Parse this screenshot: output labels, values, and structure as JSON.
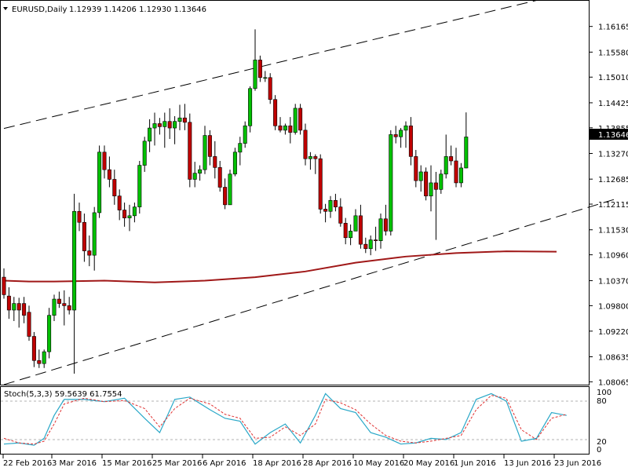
{
  "header": {
    "symbol": "EURUSD,Daily",
    "ohlc": "1.12939 1.14206 1.12930 1.13646"
  },
  "indicator": {
    "title": "Stoch(5,3,3) 59.5639 61.7554",
    "levels": [
      "100",
      "80",
      "20",
      "0"
    ]
  },
  "current_price": "1.13646",
  "colors": {
    "background": "#ffffff",
    "bull": "#00c000",
    "bear": "#c00000",
    "wick": "#000000",
    "ma": "#a01818",
    "stoch_main": "#2aa8c8",
    "stoch_signal": "#e03030",
    "channel": "#000000"
  },
  "chart_data": {
    "type": "candlestick",
    "title": "EURUSD,Daily",
    "y_ticks": [
      "1.16165",
      "1.15580",
      "1.15010",
      "1.14425",
      "1.13855",
      "1.13270",
      "1.12685",
      "1.12115",
      "1.11530",
      "1.10960",
      "1.10370",
      "1.09800",
      "1.09220",
      "1.08635",
      "1.08065"
    ],
    "ylim": [
      1.08,
      1.1675
    ],
    "x_ticks": [
      "22 Feb 2016",
      "3 Mar 2016",
      "15 Mar 2016",
      "25 Mar 2016",
      "6 Apr 2016",
      "18 Apr 2016",
      "28 Apr 2016",
      "10 May 2016",
      "20 May 2016",
      "1 Jun 2016",
      "13 Jun 2016",
      "23 Jun 2016"
    ],
    "ohlc": [
      [
        1.1045,
        1.1065,
        1.0996,
        1.1005
      ],
      [
        1.1002,
        1.1022,
        1.095,
        1.097
      ],
      [
        1.097,
        1.1,
        1.0945,
        1.0985
      ],
      [
        1.0985,
        1.0998,
        1.093,
        1.097
      ],
      [
        1.0985,
        1.1,
        1.094,
        1.0958
      ],
      [
        1.0965,
        1.098,
        1.09,
        1.091
      ],
      [
        1.091,
        1.092,
        1.084,
        1.0855
      ],
      [
        1.0855,
        1.088,
        1.0838,
        1.0848
      ],
      [
        1.0848,
        1.088,
        1.0838,
        1.0875
      ],
      [
        1.0875,
        1.0975,
        1.086,
        1.0958
      ],
      [
        1.0958,
        1.1005,
        1.0945,
        1.0995
      ],
      [
        1.0995,
        1.1012,
        1.0975,
        1.0985
      ],
      [
        1.0985,
        1.1015,
        1.0935,
        1.098
      ],
      [
        1.098,
        1.1,
        1.096,
        1.097
      ],
      [
        1.097,
        1.1235,
        1.0825,
        1.1195
      ],
      [
        1.1195,
        1.1215,
        1.115,
        1.117
      ],
      [
        1.117,
        1.119,
        1.108,
        1.1105
      ],
      [
        1.1105,
        1.114,
        1.107,
        1.1095
      ],
      [
        1.1095,
        1.1205,
        1.106,
        1.1192
      ],
      [
        1.1192,
        1.1345,
        1.118,
        1.133
      ],
      [
        1.133,
        1.1345,
        1.127,
        1.129
      ],
      [
        1.129,
        1.132,
        1.125,
        1.1268
      ],
      [
        1.1268,
        1.129,
        1.121,
        1.123
      ],
      [
        1.123,
        1.1245,
        1.1175,
        1.1198
      ],
      [
        1.1198,
        1.1215,
        1.116,
        1.118
      ],
      [
        1.118,
        1.121,
        1.115,
        1.1185
      ],
      [
        1.1185,
        1.1215,
        1.117,
        1.1205
      ],
      [
        1.1205,
        1.131,
        1.119,
        1.13
      ],
      [
        1.13,
        1.1365,
        1.1285,
        1.1355
      ],
      [
        1.1355,
        1.1405,
        1.133,
        1.1385
      ],
      [
        1.1385,
        1.142,
        1.1345,
        1.1395
      ],
      [
        1.1395,
        1.1408,
        1.137,
        1.1388
      ],
      [
        1.1388,
        1.142,
        1.134,
        1.14
      ],
      [
        1.14,
        1.143,
        1.136,
        1.1385
      ],
      [
        1.1385,
        1.1412,
        1.1348,
        1.14
      ],
      [
        1.14,
        1.1438,
        1.138,
        1.1408
      ],
      [
        1.1408,
        1.144,
        1.138,
        1.1398
      ],
      [
        1.1398,
        1.1418,
        1.125,
        1.1268
      ],
      [
        1.1268,
        1.1308,
        1.125,
        1.1282
      ],
      [
        1.1282,
        1.13,
        1.1265,
        1.129
      ],
      [
        1.129,
        1.139,
        1.128,
        1.1368
      ],
      [
        1.1368,
        1.138,
        1.13,
        1.132
      ],
      [
        1.132,
        1.1355,
        1.127,
        1.1295
      ],
      [
        1.1295,
        1.131,
        1.124,
        1.125
      ],
      [
        1.125,
        1.127,
        1.12,
        1.121
      ],
      [
        1.121,
        1.129,
        1.121,
        1.128
      ],
      [
        1.128,
        1.134,
        1.1275,
        1.133
      ],
      [
        1.133,
        1.1365,
        1.13,
        1.135
      ],
      [
        1.135,
        1.14,
        1.134,
        1.139
      ],
      [
        1.139,
        1.148,
        1.1375,
        1.1475
      ],
      [
        1.1475,
        1.161,
        1.147,
        1.154
      ],
      [
        1.154,
        1.155,
        1.149,
        1.15
      ],
      [
        1.15,
        1.1515,
        1.149,
        1.15
      ],
      [
        1.15,
        1.151,
        1.144,
        1.145
      ],
      [
        1.145,
        1.146,
        1.138,
        1.139
      ],
      [
        1.139,
        1.141,
        1.1375,
        1.138
      ],
      [
        1.138,
        1.1395,
        1.137,
        1.139
      ],
      [
        1.139,
        1.141,
        1.135,
        1.1375
      ],
      [
        1.1375,
        1.144,
        1.137,
        1.143
      ],
      [
        1.143,
        1.144,
        1.137,
        1.138
      ],
      [
        1.138,
        1.1395,
        1.13,
        1.1315
      ],
      [
        1.1315,
        1.133,
        1.129,
        1.132
      ],
      [
        1.132,
        1.1325,
        1.128,
        1.1315
      ],
      [
        1.1315,
        1.1325,
        1.119,
        1.12
      ],
      [
        1.12,
        1.1212,
        1.117,
        1.1195
      ],
      [
        1.1195,
        1.123,
        1.118,
        1.122
      ],
      [
        1.122,
        1.1235,
        1.1195,
        1.1205
      ],
      [
        1.1205,
        1.1225,
        1.116,
        1.1168
      ],
      [
        1.1168,
        1.118,
        1.112,
        1.1135
      ],
      [
        1.1135,
        1.1165,
        1.1118,
        1.115
      ],
      [
        1.115,
        1.12,
        1.115,
        1.1185
      ],
      [
        1.1185,
        1.121,
        1.111,
        1.112
      ],
      [
        1.112,
        1.1135,
        1.11,
        1.111
      ],
      [
        1.111,
        1.114,
        1.1095,
        1.113
      ],
      [
        1.113,
        1.116,
        1.1105,
        1.1128
      ],
      [
        1.1128,
        1.119,
        1.111,
        1.1178
      ],
      [
        1.1178,
        1.121,
        1.114,
        1.115
      ],
      [
        1.115,
        1.138,
        1.114,
        1.137
      ],
      [
        1.137,
        1.139,
        1.135,
        1.1365
      ],
      [
        1.1365,
        1.1385,
        1.134,
        1.138
      ],
      [
        1.138,
        1.14,
        1.134,
        1.139
      ],
      [
        1.139,
        1.141,
        1.13,
        1.132
      ],
      [
        1.132,
        1.1335,
        1.125,
        1.1265
      ],
      [
        1.1265,
        1.13,
        1.124,
        1.1285
      ],
      [
        1.1285,
        1.1295,
        1.122,
        1.123
      ],
      [
        1.123,
        1.13,
        1.1195,
        1.126
      ],
      [
        1.126,
        1.1285,
        1.113,
        1.1245
      ],
      [
        1.1245,
        1.129,
        1.1235,
        1.128
      ],
      [
        1.128,
        1.137,
        1.127,
        1.132
      ],
      [
        1.132,
        1.1345,
        1.13,
        1.131
      ],
      [
        1.131,
        1.134,
        1.125,
        1.126
      ],
      [
        1.126,
        1.1305,
        1.125,
        1.1294
      ],
      [
        1.12939,
        1.14206,
        1.1293,
        1.13646
      ]
    ],
    "moving_average": [
      [
        0,
        1.1037
      ],
      [
        5,
        1.1035
      ],
      [
        10,
        1.1035
      ],
      [
        20,
        1.1037
      ],
      [
        30,
        1.1033
      ],
      [
        40,
        1.1037
      ],
      [
        50,
        1.1045
      ],
      [
        60,
        1.1058
      ],
      [
        70,
        1.1078
      ],
      [
        80,
        1.1092
      ],
      [
        90,
        1.11
      ],
      [
        100,
        1.1104
      ],
      [
        110,
        1.1103
      ]
    ],
    "channel_lines": [
      [
        [
          0,
          1.1384
        ],
        [
          122,
          1.172
        ]
      ],
      [
        [
          0,
          1.08
        ],
        [
          122,
          1.1224
        ]
      ]
    ],
    "stochastic": {
      "main": [
        [
          0,
          10
        ],
        [
          3,
          12
        ],
        [
          6,
          8
        ],
        [
          8,
          20
        ],
        [
          10,
          60
        ],
        [
          12,
          88
        ],
        [
          16,
          88
        ],
        [
          20,
          84
        ],
        [
          24,
          90
        ],
        [
          28,
          55
        ],
        [
          31,
          30
        ],
        [
          34,
          88
        ],
        [
          37,
          92
        ],
        [
          41,
          70
        ],
        [
          44,
          55
        ],
        [
          47,
          50
        ],
        [
          50,
          10
        ],
        [
          53,
          30
        ],
        [
          56,
          45
        ],
        [
          59,
          12
        ],
        [
          62,
          60
        ],
        [
          64,
          98
        ],
        [
          67,
          72
        ],
        [
          70,
          65
        ],
        [
          73,
          30
        ],
        [
          76,
          22
        ],
        [
          79,
          10
        ],
        [
          82,
          12
        ],
        [
          85,
          20
        ],
        [
          88,
          18
        ],
        [
          91,
          30
        ],
        [
          94,
          88
        ],
        [
          97,
          98
        ],
        [
          100,
          85
        ],
        [
          103,
          15
        ],
        [
          106,
          20
        ],
        [
          109,
          65
        ],
        [
          112,
          60
        ]
      ],
      "signal": [
        [
          0,
          20
        ],
        [
          3,
          12
        ],
        [
          6,
          10
        ],
        [
          8,
          15
        ],
        [
          10,
          45
        ],
        [
          12,
          80
        ],
        [
          16,
          90
        ],
        [
          20,
          84
        ],
        [
          24,
          86
        ],
        [
          28,
          72
        ],
        [
          31,
          40
        ],
        [
          34,
          72
        ],
        [
          37,
          90
        ],
        [
          41,
          80
        ],
        [
          44,
          62
        ],
        [
          47,
          55
        ],
        [
          50,
          20
        ],
        [
          53,
          22
        ],
        [
          56,
          40
        ],
        [
          59,
          25
        ],
        [
          62,
          45
        ],
        [
          64,
          88
        ],
        [
          67,
          82
        ],
        [
          70,
          70
        ],
        [
          73,
          45
        ],
        [
          76,
          25
        ],
        [
          79,
          15
        ],
        [
          82,
          12
        ],
        [
          85,
          15
        ],
        [
          88,
          20
        ],
        [
          91,
          25
        ],
        [
          94,
          70
        ],
        [
          97,
          95
        ],
        [
          100,
          90
        ],
        [
          103,
          35
        ],
        [
          106,
          18
        ],
        [
          109,
          55
        ],
        [
          112,
          62
        ]
      ]
    }
  }
}
